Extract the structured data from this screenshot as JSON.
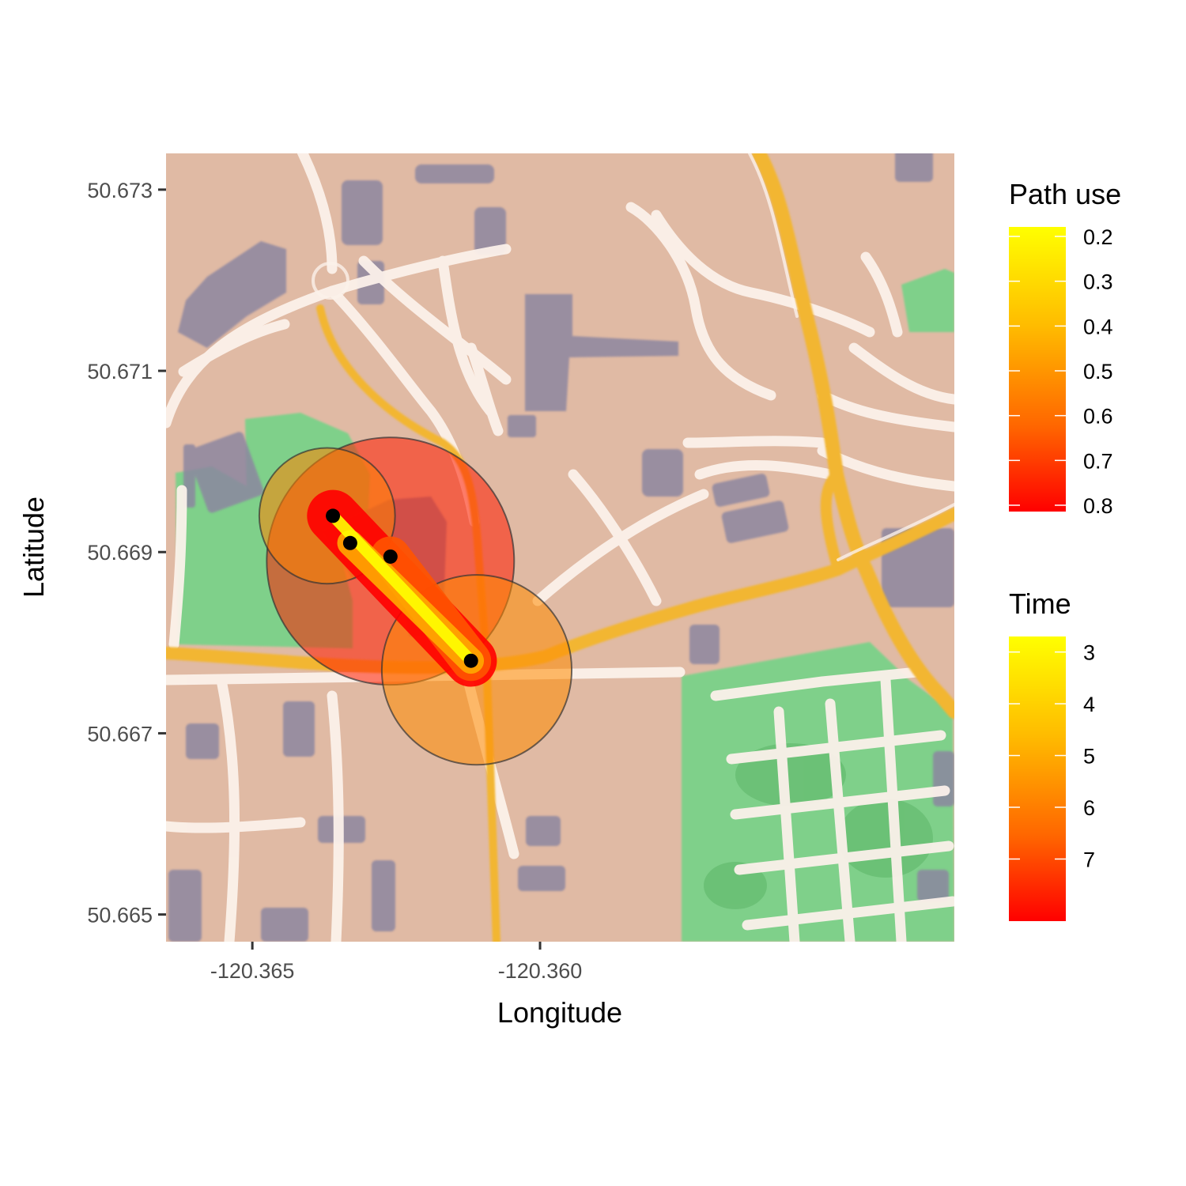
{
  "chart_data": {
    "type": "map",
    "xlabel": "Longitude",
    "ylabel": "Latitude",
    "xlim": [
      -120.3665,
      -120.3528
    ],
    "ylim": [
      50.6647,
      50.6734
    ],
    "x_ticks": [
      {
        "value": -120.365,
        "label": "-120.365"
      },
      {
        "value": -120.36,
        "label": "-120.360"
      }
    ],
    "y_ticks": [
      {
        "value": 50.673,
        "label": "50.673"
      },
      {
        "value": 50.671,
        "label": "50.671"
      },
      {
        "value": 50.669,
        "label": "50.669"
      },
      {
        "value": 50.667,
        "label": "50.667"
      },
      {
        "value": 50.665,
        "label": "50.665"
      }
    ],
    "points": [
      {
        "lon": -120.3636,
        "lat": 50.6694
      },
      {
        "lon": -120.3633,
        "lat": 50.6691
      },
      {
        "lon": -120.3626,
        "lat": 50.66895
      },
      {
        "lon": -120.3612,
        "lat": 50.6678
      }
    ],
    "time_circles": [
      {
        "lon": -120.3626,
        "lat": 50.6689,
        "radius_lon": 0.00215,
        "time": 7.6
      },
      {
        "lon": -120.3637,
        "lat": 50.6694,
        "radius_lon": 0.00118,
        "time": 5.4
      },
      {
        "lon": -120.3611,
        "lat": 50.6677,
        "radius_lon": 0.00165,
        "time": 5.2
      }
    ],
    "path_segments": [
      {
        "from": 3,
        "to": 0,
        "use": 0.8,
        "width_lon": 0.0009
      },
      {
        "from": 3,
        "to": 2,
        "use": 0.6,
        "width_lon": 0.0007
      },
      {
        "from": 3,
        "to": 1,
        "use": 0.4,
        "width_lon": 0.00045
      },
      {
        "from": 3,
        "to": 0,
        "use": 0.2,
        "width_lon": 0.0002
      }
    ],
    "legends": [
      {
        "title": "Path use",
        "colors": [
          "#ffff00",
          "#ff0000"
        ],
        "labels": [
          {
            "value": 0.2,
            "label": "0.2"
          },
          {
            "value": 0.3,
            "label": "0.3"
          },
          {
            "value": 0.4,
            "label": "0.4"
          },
          {
            "value": 0.5,
            "label": "0.5"
          },
          {
            "value": 0.6,
            "label": "0.6"
          },
          {
            "value": 0.7,
            "label": "0.7"
          },
          {
            "value": 0.8,
            "label": "0.8"
          }
        ],
        "range": [
          0.2,
          0.8
        ]
      },
      {
        "title": "Time",
        "colors": [
          "#ffff00",
          "#ff0000"
        ],
        "labels": [
          {
            "value": 3,
            "label": "3"
          },
          {
            "value": 4,
            "label": "4"
          },
          {
            "value": 5,
            "label": "5"
          },
          {
            "value": 6,
            "label": "6"
          },
          {
            "value": 7,
            "label": "7"
          }
        ],
        "range": [
          2.7,
          8.2
        ]
      }
    ]
  },
  "colors": {
    "land": "#dcb49d",
    "park": "#7fd08a",
    "building": "#8c86a0",
    "road": "#fbf1ea",
    "major_road": "#f2b632",
    "point": "#000000"
  }
}
